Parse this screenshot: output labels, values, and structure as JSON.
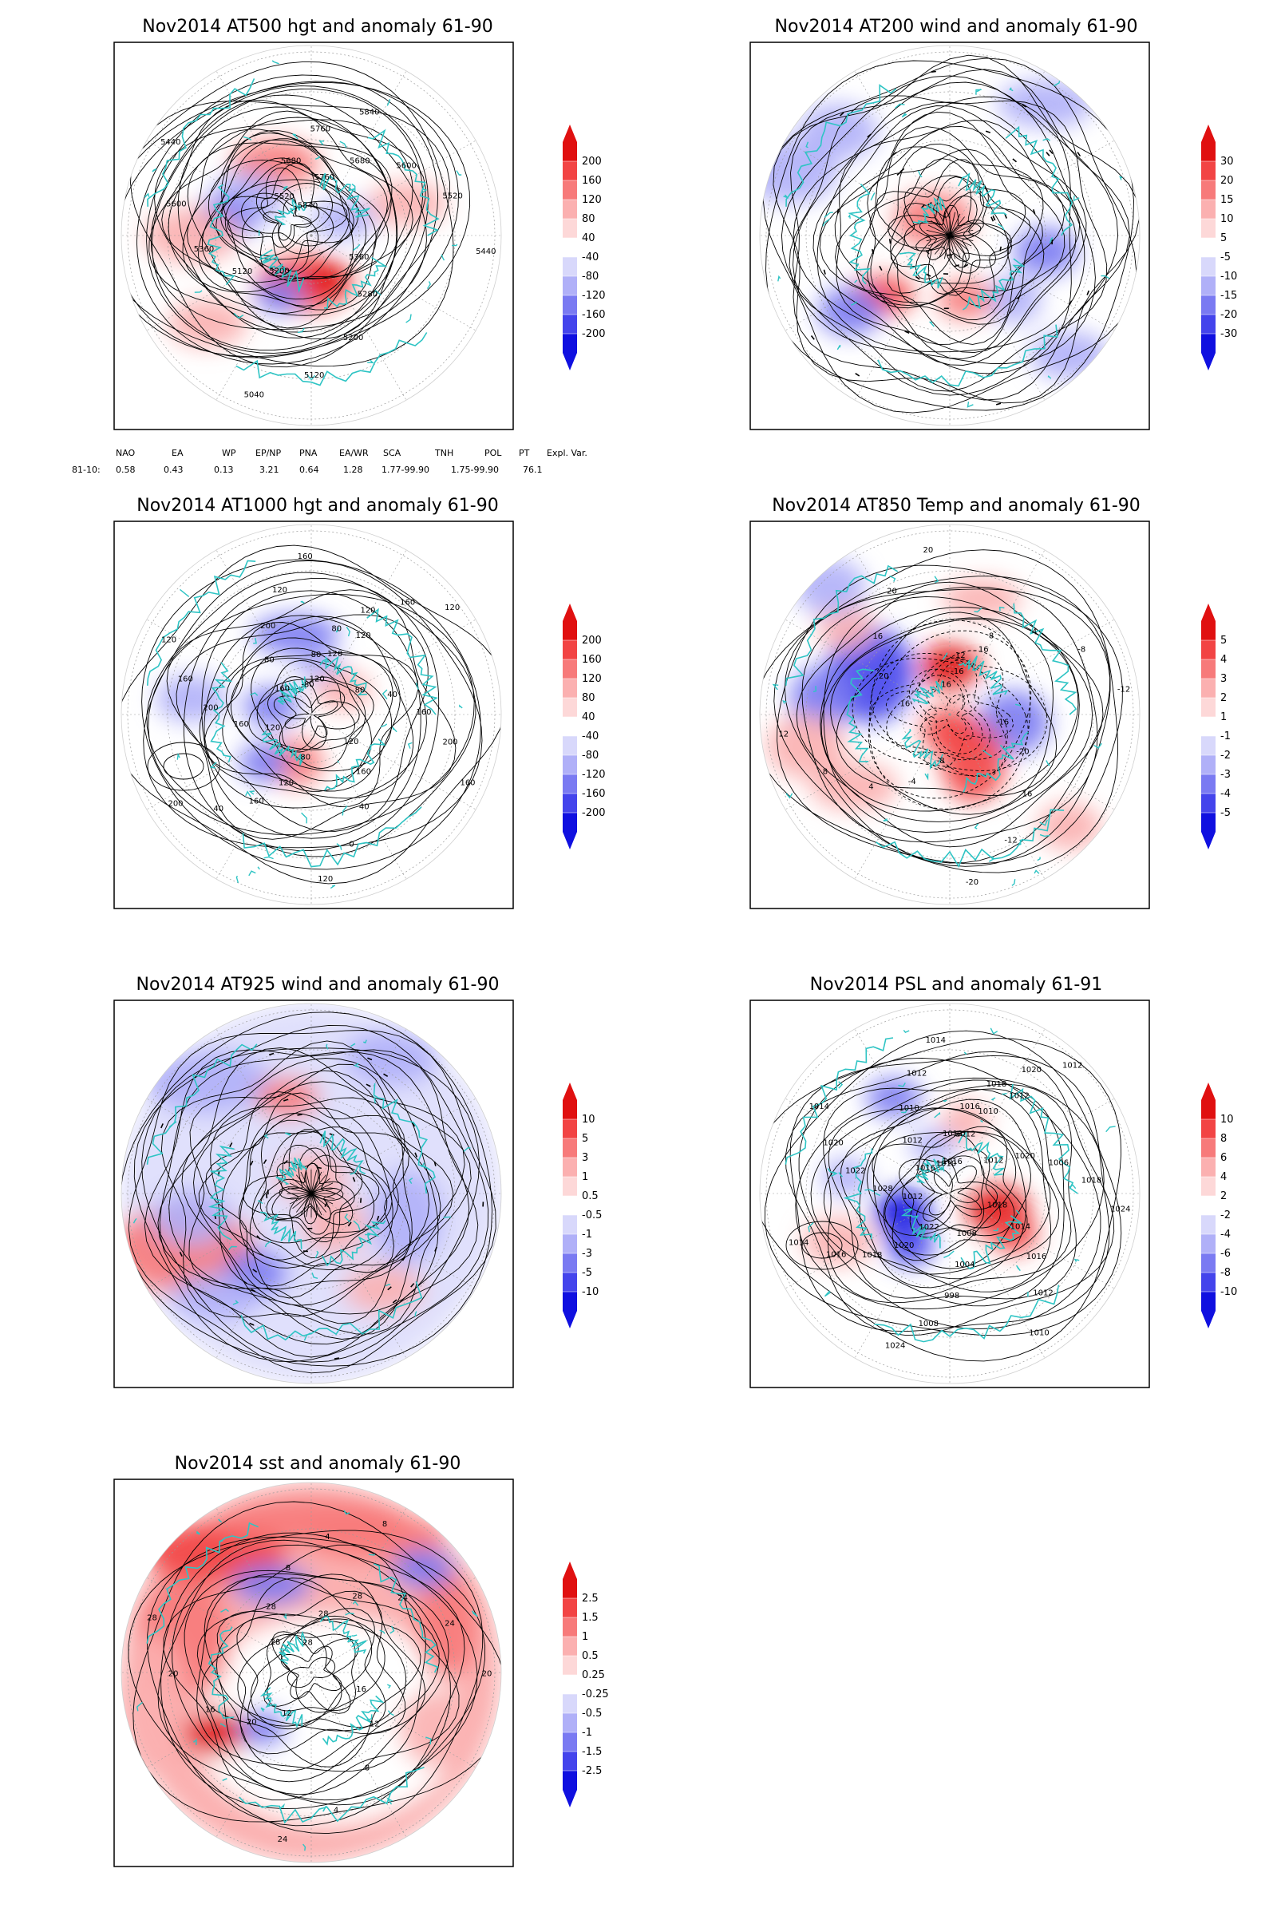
{
  "panels": [
    {
      "key": "p500",
      "title": "Nov2014 AT500 hgt and anomaly 61-90",
      "colorbar": {
        "labels": [
          "200",
          "160",
          "120",
          "80",
          "40",
          "-40",
          "-80",
          "-120",
          "-160",
          "-200"
        ],
        "colors": [
          "#e01010",
          "#f24444",
          "#f77a7a",
          "#fbb0b0",
          "#fdd8d8",
          "#ffffff",
          "#d8d8fb",
          "#b0b0f8",
          "#7a7af2",
          "#4444ec",
          "#1010e0"
        ]
      },
      "contour_labels": [
        "5840",
        "5760",
        "5680",
        "5600",
        "5520",
        "5440",
        "5360",
        "5280",
        "5200",
        "5120",
        "5040",
        "5200",
        "5120",
        "5360",
        "5600",
        "5440",
        "5520",
        "5680",
        "5760",
        "5840"
      ],
      "stream": false,
      "dashed": false
    },
    {
      "key": "p200",
      "title": "Nov2014 AT200 wind and anomaly 61-90",
      "colorbar": {
        "labels": [
          "30",
          "20",
          "15",
          "10",
          "5",
          "-5",
          "-10",
          "-15",
          "-20",
          "-30"
        ],
        "colors": [
          "#e01010",
          "#f24444",
          "#f77a7a",
          "#fbb0b0",
          "#fdd8d8",
          "#ffffff",
          "#d8d8fb",
          "#b0b0f8",
          "#7a7af2",
          "#4444ec",
          "#1010e0"
        ]
      },
      "contour_labels": [],
      "stream": true,
      "dashed": false
    },
    {
      "key": "p1000",
      "title": "Nov2014 AT1000 hgt and anomaly 61-90",
      "colorbar": {
        "labels": [
          "200",
          "160",
          "120",
          "80",
          "40",
          "-40",
          "-80",
          "-120",
          "-160",
          "-200"
        ],
        "colors": [
          "#e01010",
          "#f24444",
          "#f77a7a",
          "#fbb0b0",
          "#fdd8d8",
          "#ffffff",
          "#d8d8fb",
          "#b0b0f8",
          "#7a7af2",
          "#4444ec",
          "#1010e0"
        ]
      },
      "contour_labels": [
        "-80",
        "80",
        "80",
        "120",
        "160",
        "120",
        "80",
        "40",
        "160",
        "200",
        "160",
        "120",
        "160",
        "40",
        "0",
        "120",
        "80",
        "120",
        "160",
        "40",
        "200",
        "120",
        "160",
        "200",
        "160",
        "120",
        "160",
        "80",
        "200",
        "120",
        "160",
        "120",
        "120",
        "120"
      ],
      "stream": false,
      "dashed": false
    },
    {
      "key": "p850",
      "title": "Nov2014 AT850 Temp and anomaly 61-90",
      "colorbar": {
        "labels": [
          "5",
          "4",
          "3",
          "2",
          "1",
          "-1",
          "-2",
          "-3",
          "-4",
          "-5"
        ],
        "colors": [
          "#e01010",
          "#f24444",
          "#f77a7a",
          "#fbb0b0",
          "#fdd8d8",
          "#ffffff",
          "#d8d8fb",
          "#b0b0f8",
          "#7a7af2",
          "#4444ec",
          "#1010e0"
        ]
      },
      "contour_labels": [
        "16",
        "12",
        "8",
        "4",
        "-8",
        "-12",
        "-16",
        "-20",
        "16",
        "-12",
        "-20",
        "-8",
        "-4",
        "4",
        "8",
        "12",
        "16",
        "20",
        "16",
        "20",
        "20",
        "-16",
        "16"
      ],
      "stream": false,
      "dashed": true
    },
    {
      "key": "p925",
      "title": "Nov2014 AT925 wind and anomaly 61-90",
      "colorbar": {
        "labels": [
          "10",
          "5",
          "3",
          "1",
          "0.5",
          "-0.5",
          "-1",
          "-3",
          "-5",
          "-10"
        ],
        "colors": [
          "#e01010",
          "#f24444",
          "#f77a7a",
          "#fbb0b0",
          "#fdd8d8",
          "#ffffff",
          "#d8d8fb",
          "#b0b0f8",
          "#7a7af2",
          "#4444ec",
          "#1010e0"
        ]
      },
      "contour_labels": [],
      "stream": true,
      "dashed": false
    },
    {
      "key": "psl",
      "title": "Nov2014 PSL and anomaly 61-91",
      "colorbar": {
        "labels": [
          "10",
          "8",
          "6",
          "4",
          "2",
          "-2",
          "-4",
          "-6",
          "-8",
          "-10"
        ],
        "colors": [
          "#e01010",
          "#f24444",
          "#f77a7a",
          "#fbb0b0",
          "#fdd8d8",
          "#ffffff",
          "#d8d8fb",
          "#b0b0f8",
          "#7a7af2",
          "#4444ec",
          "#1010e0"
        ]
      },
      "contour_labels": [
        "1010",
        "1012",
        "1016",
        "1018",
        "1020",
        "1012",
        "1012",
        "1020",
        "1006",
        "1018",
        "1024",
        "1018",
        "1014",
        "1016",
        "1012",
        "1010",
        "1008",
        "1004",
        "998",
        "1008",
        "1024",
        "1022",
        "1020",
        "1018",
        "1016",
        "1014",
        "1012",
        "1028",
        "1022",
        "1020",
        "1014",
        "1016",
        "1012",
        "1010",
        "1012",
        "1014",
        "1016",
        "1012",
        "1010",
        "1012"
      ],
      "stream": false,
      "dashed": false
    },
    {
      "key": "sst",
      "title": "Nov2014 sst and anomaly 61-90",
      "colorbar": {
        "labels": [
          "2.5",
          "1.5",
          "1",
          "0.5",
          "0.25",
          "-0.25",
          "-0.5",
          "-1",
          "-1.5",
          "-2.5"
        ],
        "colors": [
          "#e01010",
          "#f24444",
          "#f77a7a",
          "#fbb0b0",
          "#fdd8d8",
          "#ffffff",
          "#d8d8fb",
          "#b0b0f8",
          "#7a7af2",
          "#4444ec",
          "#1010e0"
        ]
      },
      "contour_labels": [
        "28",
        "28",
        "28",
        "24",
        "24",
        "20",
        "16",
        "12",
        "8",
        "4",
        "24",
        "12",
        "20",
        "16",
        "20",
        "28",
        "28",
        "28",
        "8",
        "4",
        "8"
      ],
      "stream": false,
      "dashed": false
    }
  ],
  "index_table": {
    "headers": [
      "NAO",
      "EA",
      "WP",
      "EP/NP",
      "PNA",
      "EA/WR",
      "SCA",
      "TNH",
      "POL",
      "PT",
      "Expl. Var."
    ],
    "row_label": "81-10:",
    "values": [
      "0.58",
      "0.43",
      "0.13",
      "3.21",
      "0.64",
      "1.28",
      "1.77-99.90",
      "1.75-99.90",
      "76.1"
    ]
  },
  "colors": {
    "coastline": "#2ec4c4",
    "contour": "#000000",
    "grid": "#9a9a9a",
    "frame": "#000000"
  }
}
